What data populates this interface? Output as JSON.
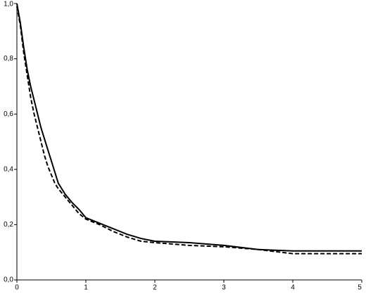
{
  "chart_data": {
    "type": "line",
    "x": [
      0,
      0.05,
      0.1,
      0.15,
      0.2,
      0.25,
      0.3,
      0.35,
      0.4,
      0.45,
      0.5,
      0.55,
      0.6,
      0.7,
      0.8,
      0.9,
      1.0,
      1.2,
      1.4,
      1.6,
      1.8,
      2.0,
      2.5,
      3.0,
      3.5,
      4.0,
      4.5,
      5.0
    ],
    "series": [
      {
        "color": "#000000",
        "line_style": "solid",
        "values": [
          1.0,
          0.93,
          0.84,
          0.76,
          0.7,
          0.65,
          0.6,
          0.55,
          0.51,
          0.47,
          0.43,
          0.39,
          0.35,
          0.31,
          0.28,
          0.255,
          0.225,
          0.205,
          0.185,
          0.165,
          0.15,
          0.14,
          0.135,
          0.125,
          0.11,
          0.105,
          0.105,
          0.105
        ]
      },
      {
        "color": "#000000",
        "line_style": "dashed",
        "values": [
          0.99,
          0.92,
          0.82,
          0.74,
          0.66,
          0.6,
          0.55,
          0.5,
          0.45,
          0.41,
          0.38,
          0.35,
          0.33,
          0.3,
          0.27,
          0.24,
          0.22,
          0.2,
          0.175,
          0.155,
          0.14,
          0.135,
          0.125,
          0.12,
          0.11,
          0.095,
          0.095,
          0.095
        ]
      }
    ],
    "xlim": [
      0,
      5
    ],
    "xticks": [
      0,
      1,
      2,
      3,
      4,
      5
    ],
    "ylim": [
      0,
      1
    ],
    "yticks": [
      {
        "value": 0,
        "label": "0,0"
      },
      {
        "value": 0.2,
        "label": "0,2"
      },
      {
        "value": 0.4,
        "label": "0,4"
      },
      {
        "value": 0.6,
        "label": "0,6"
      },
      {
        "value": 0.8,
        "label": "0,8"
      },
      {
        "value": 1,
        "label": "1,0"
      }
    ],
    "grid": false
  }
}
